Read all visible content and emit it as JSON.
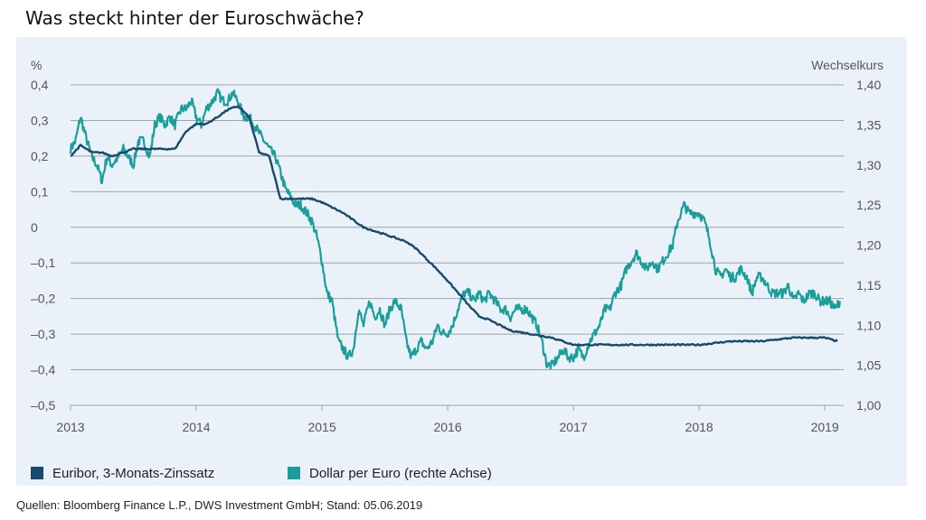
{
  "title": "Was steckt hinter der Euroschwäche?",
  "source": "Quellen: Bloomberg Finance L.P., DWS Investment GmbH; Stand: 05.06.2019",
  "colors": {
    "euribor": "#1a4a6b",
    "usd": "#1a9e9a",
    "grid": "#9aa4ad",
    "tick_text": "#555555",
    "panel": "#eaf1f8"
  },
  "chart_data": {
    "type": "line",
    "y_left": {
      "unit_label": "%",
      "range": [
        -0.5,
        0.4
      ],
      "ticks": [
        0.4,
        0.3,
        0.2,
        0.1,
        0,
        -0.1,
        -0.2,
        -0.3,
        -0.4,
        -0.5
      ],
      "tick_labels": [
        "0,4",
        "0,3",
        "0,2",
        "0,1",
        "0",
        "–0,1",
        "–0,2",
        "–0,3",
        "–0,4",
        "–0,5"
      ]
    },
    "y_right": {
      "unit_label": "Wechselkurs",
      "range": [
        1.0,
        1.4
      ],
      "ticks": [
        1.4,
        1.35,
        1.3,
        1.25,
        1.2,
        1.15,
        1.1,
        1.05,
        1.0
      ],
      "tick_labels": [
        "1,40",
        "1,35",
        "1,30",
        "1,25",
        "1,20",
        "1,15",
        "1,10",
        "1,05",
        "1,00"
      ]
    },
    "x_axis": {
      "range": [
        2013,
        2019.15
      ],
      "ticks": [
        2013,
        2014,
        2015,
        2016,
        2017,
        2018,
        2019
      ],
      "tick_labels": [
        "2013",
        "2014",
        "2015",
        "2016",
        "2017",
        "2018",
        "2019"
      ]
    },
    "grid": "horizontal",
    "legend_position": "bottom",
    "series": [
      {
        "name": "Euribor, 3-Monats-Zinssatz",
        "axis": "left",
        "points": [
          [
            2013.0,
            0.2
          ],
          [
            2013.08,
            0.23
          ],
          [
            2013.17,
            0.21
          ],
          [
            2013.25,
            0.21
          ],
          [
            2013.33,
            0.2
          ],
          [
            2013.42,
            0.21
          ],
          [
            2013.5,
            0.22
          ],
          [
            2013.58,
            0.22
          ],
          [
            2013.67,
            0.22
          ],
          [
            2013.75,
            0.22
          ],
          [
            2013.83,
            0.22
          ],
          [
            2013.92,
            0.27
          ],
          [
            2014.0,
            0.29
          ],
          [
            2014.08,
            0.29
          ],
          [
            2014.17,
            0.31
          ],
          [
            2014.25,
            0.33
          ],
          [
            2014.33,
            0.34
          ],
          [
            2014.42,
            0.31
          ],
          [
            2014.5,
            0.21
          ],
          [
            2014.58,
            0.2
          ],
          [
            2014.67,
            0.08
          ],
          [
            2014.75,
            0.08
          ],
          [
            2014.83,
            0.08
          ],
          [
            2014.92,
            0.08
          ],
          [
            2015.0,
            0.07
          ],
          [
            2015.17,
            0.04
          ],
          [
            2015.33,
            0.0
          ],
          [
            2015.5,
            -0.02
          ],
          [
            2015.67,
            -0.04
          ],
          [
            2015.75,
            -0.06
          ],
          [
            2015.92,
            -0.12
          ],
          [
            2016.0,
            -0.15
          ],
          [
            2016.17,
            -0.22
          ],
          [
            2016.25,
            -0.25
          ],
          [
            2016.33,
            -0.26
          ],
          [
            2016.5,
            -0.29
          ],
          [
            2016.67,
            -0.3
          ],
          [
            2016.83,
            -0.31
          ],
          [
            2017.0,
            -0.33
          ],
          [
            2017.5,
            -0.33
          ],
          [
            2018.0,
            -0.33
          ],
          [
            2018.25,
            -0.32
          ],
          [
            2018.5,
            -0.32
          ],
          [
            2018.75,
            -0.31
          ],
          [
            2019.0,
            -0.31
          ],
          [
            2019.1,
            -0.32
          ]
        ]
      },
      {
        "name": "Dollar per Euro (rechte Achse)",
        "axis": "right",
        "points": [
          [
            2013.0,
            1.32
          ],
          [
            2013.04,
            1.33
          ],
          [
            2013.08,
            1.36
          ],
          [
            2013.13,
            1.33
          ],
          [
            2013.17,
            1.31
          ],
          [
            2013.21,
            1.3
          ],
          [
            2013.25,
            1.28
          ],
          [
            2013.29,
            1.31
          ],
          [
            2013.33,
            1.3
          ],
          [
            2013.38,
            1.31
          ],
          [
            2013.42,
            1.32
          ],
          [
            2013.46,
            1.31
          ],
          [
            2013.5,
            1.3
          ],
          [
            2013.54,
            1.33
          ],
          [
            2013.58,
            1.33
          ],
          [
            2013.63,
            1.31
          ],
          [
            2013.67,
            1.35
          ],
          [
            2013.71,
            1.36
          ],
          [
            2013.75,
            1.35
          ],
          [
            2013.79,
            1.36
          ],
          [
            2013.83,
            1.35
          ],
          [
            2013.88,
            1.37
          ],
          [
            2013.92,
            1.37
          ],
          [
            2013.96,
            1.38
          ],
          [
            2014.0,
            1.36
          ],
          [
            2014.04,
            1.35
          ],
          [
            2014.08,
            1.37
          ],
          [
            2014.13,
            1.38
          ],
          [
            2014.17,
            1.39
          ],
          [
            2014.21,
            1.38
          ],
          [
            2014.25,
            1.38
          ],
          [
            2014.29,
            1.39
          ],
          [
            2014.33,
            1.38
          ],
          [
            2014.38,
            1.36
          ],
          [
            2014.42,
            1.36
          ],
          [
            2014.46,
            1.35
          ],
          [
            2014.5,
            1.34
          ],
          [
            2014.54,
            1.33
          ],
          [
            2014.58,
            1.32
          ],
          [
            2014.63,
            1.31
          ],
          [
            2014.67,
            1.29
          ],
          [
            2014.71,
            1.27
          ],
          [
            2014.75,
            1.26
          ],
          [
            2014.79,
            1.25
          ],
          [
            2014.83,
            1.25
          ],
          [
            2014.88,
            1.24
          ],
          [
            2014.92,
            1.23
          ],
          [
            2014.96,
            1.21
          ],
          [
            2015.0,
            1.18
          ],
          [
            2015.04,
            1.14
          ],
          [
            2015.08,
            1.13
          ],
          [
            2015.13,
            1.08
          ],
          [
            2015.17,
            1.07
          ],
          [
            2015.21,
            1.06
          ],
          [
            2015.25,
            1.07
          ],
          [
            2015.29,
            1.12
          ],
          [
            2015.33,
            1.1
          ],
          [
            2015.38,
            1.13
          ],
          [
            2015.42,
            1.11
          ],
          [
            2015.46,
            1.12
          ],
          [
            2015.5,
            1.1
          ],
          [
            2015.54,
            1.12
          ],
          [
            2015.58,
            1.13
          ],
          [
            2015.63,
            1.12
          ],
          [
            2015.67,
            1.08
          ],
          [
            2015.71,
            1.06
          ],
          [
            2015.75,
            1.07
          ],
          [
            2015.79,
            1.08
          ],
          [
            2015.83,
            1.07
          ],
          [
            2015.88,
            1.08
          ],
          [
            2015.92,
            1.1
          ],
          [
            2015.96,
            1.09
          ],
          [
            2016.0,
            1.09
          ],
          [
            2016.04,
            1.1
          ],
          [
            2016.08,
            1.12
          ],
          [
            2016.13,
            1.14
          ],
          [
            2016.17,
            1.14
          ],
          [
            2016.21,
            1.13
          ],
          [
            2016.25,
            1.14
          ],
          [
            2016.29,
            1.13
          ],
          [
            2016.33,
            1.14
          ],
          [
            2016.38,
            1.13
          ],
          [
            2016.42,
            1.12
          ],
          [
            2016.46,
            1.12
          ],
          [
            2016.5,
            1.11
          ],
          [
            2016.54,
            1.12
          ],
          [
            2016.58,
            1.12
          ],
          [
            2016.63,
            1.12
          ],
          [
            2016.67,
            1.11
          ],
          [
            2016.71,
            1.1
          ],
          [
            2016.75,
            1.08
          ],
          [
            2016.79,
            1.05
          ],
          [
            2016.83,
            1.05
          ],
          [
            2016.88,
            1.06
          ],
          [
            2016.92,
            1.07
          ],
          [
            2016.96,
            1.06
          ],
          [
            2017.0,
            1.06
          ],
          [
            2017.04,
            1.07
          ],
          [
            2017.08,
            1.06
          ],
          [
            2017.13,
            1.08
          ],
          [
            2017.17,
            1.09
          ],
          [
            2017.21,
            1.1
          ],
          [
            2017.25,
            1.12
          ],
          [
            2017.29,
            1.12
          ],
          [
            2017.33,
            1.14
          ],
          [
            2017.38,
            1.15
          ],
          [
            2017.42,
            1.17
          ],
          [
            2017.46,
            1.18
          ],
          [
            2017.5,
            1.19
          ],
          [
            2017.54,
            1.18
          ],
          [
            2017.58,
            1.17
          ],
          [
            2017.63,
            1.18
          ],
          [
            2017.67,
            1.17
          ],
          [
            2017.71,
            1.18
          ],
          [
            2017.75,
            1.19
          ],
          [
            2017.79,
            1.2
          ],
          [
            2017.83,
            1.23
          ],
          [
            2017.88,
            1.25
          ],
          [
            2017.92,
            1.24
          ],
          [
            2017.96,
            1.24
          ],
          [
            2018.0,
            1.24
          ],
          [
            2018.04,
            1.23
          ],
          [
            2018.08,
            1.21
          ],
          [
            2018.13,
            1.17
          ],
          [
            2018.17,
            1.16
          ],
          [
            2018.21,
            1.17
          ],
          [
            2018.25,
            1.16
          ],
          [
            2018.29,
            1.16
          ],
          [
            2018.33,
            1.17
          ],
          [
            2018.38,
            1.16
          ],
          [
            2018.42,
            1.14
          ],
          [
            2018.46,
            1.16
          ],
          [
            2018.5,
            1.16
          ],
          [
            2018.54,
            1.15
          ],
          [
            2018.58,
            1.14
          ],
          [
            2018.63,
            1.14
          ],
          [
            2018.67,
            1.14
          ],
          [
            2018.71,
            1.15
          ],
          [
            2018.75,
            1.13
          ],
          [
            2018.79,
            1.14
          ],
          [
            2018.83,
            1.13
          ],
          [
            2018.88,
            1.14
          ],
          [
            2018.92,
            1.14
          ],
          [
            2018.96,
            1.13
          ],
          [
            2019.0,
            1.13
          ],
          [
            2019.04,
            1.13
          ],
          [
            2019.08,
            1.12
          ],
          [
            2019.12,
            1.13
          ]
        ]
      }
    ]
  }
}
